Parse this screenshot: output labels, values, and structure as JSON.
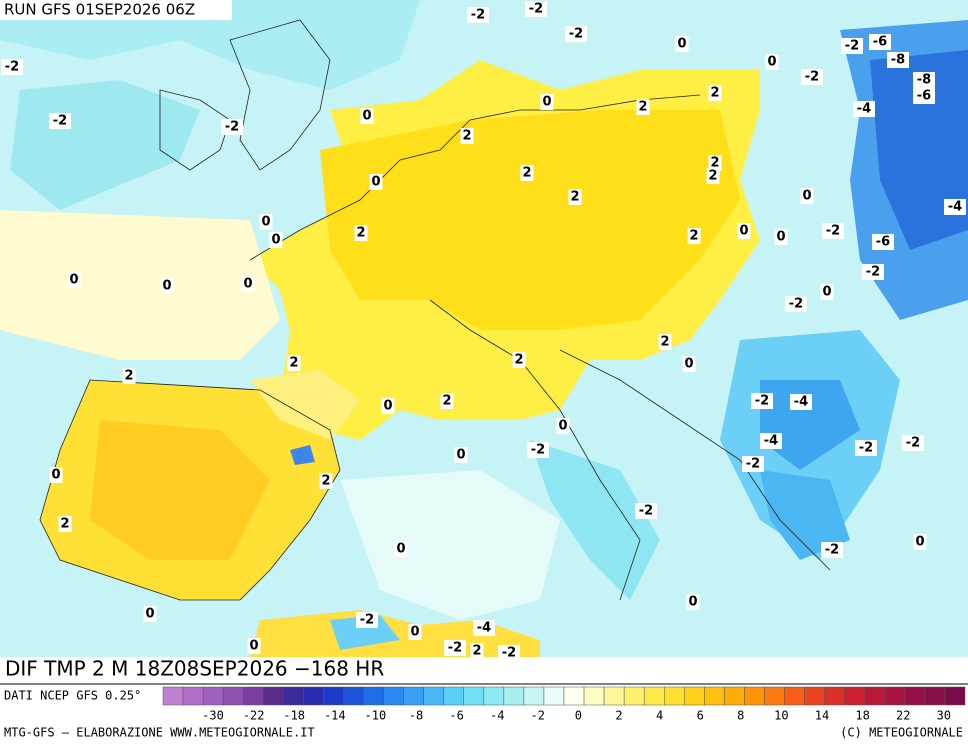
{
  "header": {
    "run": "RUN GFS 01SEP2026 06Z"
  },
  "footer": {
    "title": "DIF TMP 2 M 18Z08SEP2026 −168 HR",
    "source": "DATI NCEP GFS 0.25°",
    "credit": "MTG-GFS — ELABORAZIONE WWW.METEOGIORNALE.IT",
    "copyright": "(C) METEOGIORNALE"
  },
  "colorbar": {
    "colors": [
      "#c080d0",
      "#b070c8",
      "#a060c0",
      "#9050b0",
      "#7a3ea0",
      "#5a2a8c",
      "#3a2a9a",
      "#2a2ab0",
      "#1e3cc8",
      "#1e55dc",
      "#1e6ee8",
      "#2a88f0",
      "#3aa0f5",
      "#4ab8f8",
      "#5ccff8",
      "#70e0f5",
      "#8aeaf2",
      "#a8f0f0",
      "#c8f6f6",
      "#e8fcfc",
      "#fffff0",
      "#fffcc0",
      "#fff69a",
      "#fff070",
      "#ffe84a",
      "#ffe030",
      "#ffd11a",
      "#ffc010",
      "#ffab08",
      "#ff9408",
      "#ff7a10",
      "#f85e18",
      "#ec4420",
      "#dc3028",
      "#cc2030",
      "#b8183a",
      "#a81440",
      "#981048",
      "#88104a",
      "#780c48"
    ],
    "ticks": [
      -30,
      -22,
      -18,
      -14,
      -10,
      -8,
      -6,
      -4,
      -2,
      0,
      2,
      4,
      6,
      8,
      10,
      14,
      18,
      22,
      30
    ]
  },
  "contour_labels": [
    "-2",
    "-2",
    "-2",
    "0",
    "-2",
    "-6",
    "-8",
    "0",
    "-2",
    "-8",
    "-6",
    "-2",
    "-2",
    "-2",
    "0",
    "0",
    "2",
    "2",
    "-4",
    "2",
    "2",
    "2",
    "2",
    "0",
    "2",
    "0",
    "-4",
    "0",
    "0",
    "2",
    "2",
    "0",
    "0",
    "-2",
    "-6",
    "-2",
    "0",
    "0",
    "0",
    "0",
    "-2",
    "2",
    "0",
    "2",
    "2",
    "2",
    "0",
    "2",
    "-2",
    "-4",
    "0",
    "-4",
    "-2",
    "0",
    "-2",
    "-2",
    "-2",
    "0",
    "2",
    "-2",
    "2",
    "0",
    "0",
    "-2",
    "0",
    "0",
    "-2",
    "0",
    "-4",
    "0",
    "-2",
    "2",
    "-2"
  ]
}
